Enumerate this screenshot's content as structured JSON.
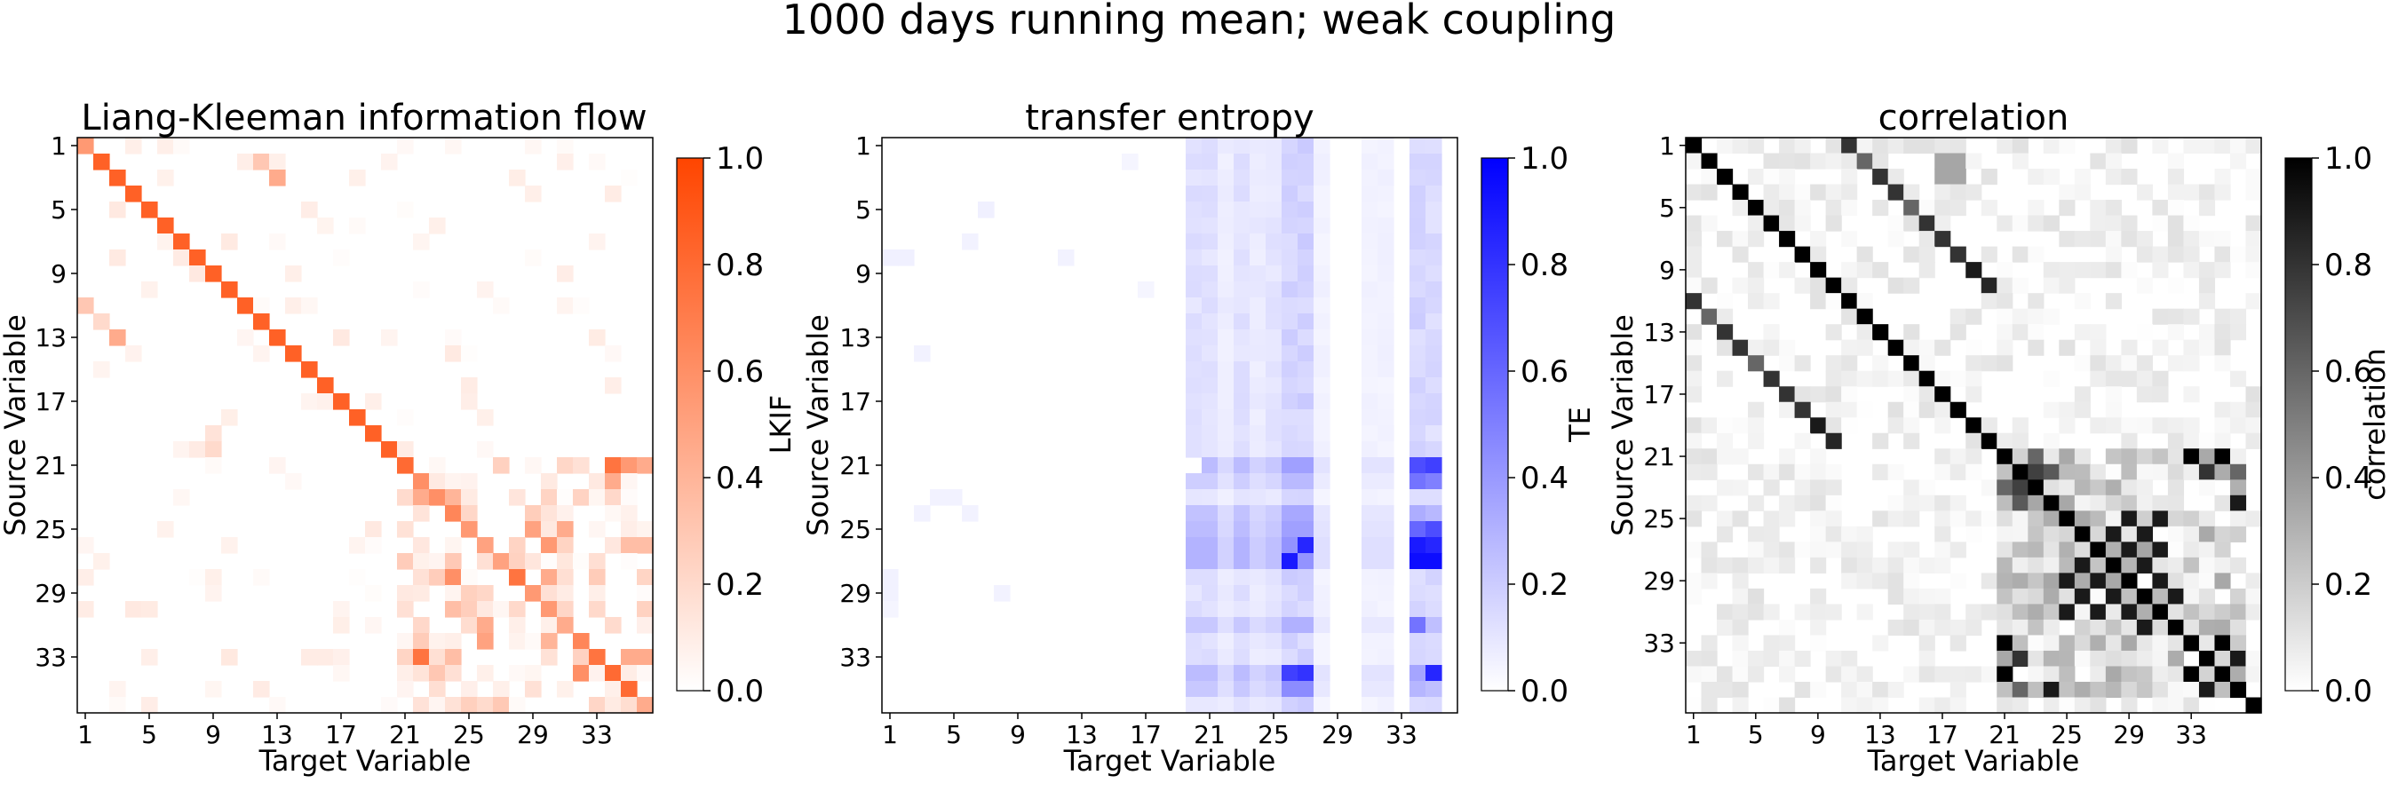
{
  "suptitle": "1000 days running mean; weak coupling",
  "panels": [
    {
      "id": "lkif",
      "title": "Liang-Kleeman information flow",
      "cbar_label": "LKIF",
      "cmap": {
        "low": "#ffffff",
        "high": "#ff4500"
      },
      "seed": 11,
      "bg_density": 0.12,
      "bg_scale": 0.12,
      "clusters": [
        {
          "rows": [
            21,
            36
          ],
          "cols": [
            21,
            36
          ],
          "density": 0.45,
          "scale": 0.3
        }
      ]
    },
    {
      "id": "te",
      "title": "transfer entropy",
      "cbar_label": "TE",
      "cmap": {
        "low": "#ffffff",
        "high": "#0000ff"
      },
      "seed": 23,
      "bg_density": 0.0,
      "bg_scale": 0.0,
      "clusters": []
    },
    {
      "id": "corr",
      "title": "correlation",
      "cbar_label": "correlation",
      "cmap": {
        "low": "#ffffff",
        "high": "#000000"
      },
      "seed": 37,
      "bg_density": 0.55,
      "bg_scale": 0.12,
      "clusters": [
        {
          "rows": [
            21,
            36
          ],
          "cols": [
            21,
            36
          ],
          "density": 0.8,
          "scale": 0.35
        }
      ]
    }
  ],
  "chart_data": [
    {
      "type": "heatmap",
      "title": "Liang-Kleeman information flow",
      "xlabel": "Target Variable",
      "ylabel": "Source Variable",
      "n": 36,
      "xticks": [
        1,
        5,
        9,
        13,
        17,
        21,
        25,
        29,
        33
      ],
      "yticks": [
        1,
        5,
        9,
        13,
        17,
        21,
        25,
        29,
        33
      ],
      "colorbar": {
        "label": "LKIF",
        "range": [
          0.0,
          1.0
        ],
        "ticks": [
          0.0,
          0.2,
          0.4,
          0.6,
          0.8,
          1.0
        ]
      },
      "strong_cells": [
        [
          1,
          1,
          0.55
        ],
        [
          2,
          2,
          0.85
        ],
        [
          3,
          3,
          0.85
        ],
        [
          4,
          4,
          0.85
        ],
        [
          5,
          5,
          0.85
        ],
        [
          6,
          6,
          0.85
        ],
        [
          7,
          7,
          0.85
        ],
        [
          8,
          8,
          0.85
        ],
        [
          9,
          9,
          0.85
        ],
        [
          10,
          10,
          0.85
        ],
        [
          11,
          11,
          0.85
        ],
        [
          12,
          12,
          0.85
        ],
        [
          13,
          13,
          0.85
        ],
        [
          14,
          14,
          0.85
        ],
        [
          15,
          15,
          0.85
        ],
        [
          16,
          16,
          0.85
        ],
        [
          17,
          17,
          0.85
        ],
        [
          18,
          18,
          0.85
        ],
        [
          19,
          19,
          0.85
        ],
        [
          20,
          20,
          0.85
        ],
        [
          21,
          21,
          0.8
        ],
        [
          22,
          22,
          0.6
        ],
        [
          23,
          23,
          0.6
        ],
        [
          24,
          24,
          0.65
        ],
        [
          25,
          25,
          0.55
        ],
        [
          26,
          26,
          0.5
        ],
        [
          27,
          27,
          0.5
        ],
        [
          28,
          28,
          0.75
        ],
        [
          29,
          29,
          0.55
        ],
        [
          30,
          30,
          0.55
        ],
        [
          31,
          31,
          0.6
        ],
        [
          32,
          32,
          0.65
        ],
        [
          33,
          33,
          0.75
        ],
        [
          34,
          34,
          0.8
        ],
        [
          35,
          35,
          0.8
        ],
        [
          36,
          36,
          0.45
        ],
        [
          2,
          12,
          0.3
        ],
        [
          3,
          13,
          0.45
        ],
        [
          13,
          3,
          0.45
        ],
        [
          12,
          2,
          0.2
        ],
        [
          11,
          1,
          0.3
        ],
        [
          20,
          9,
          0.2
        ],
        [
          19,
          9,
          0.15
        ],
        [
          21,
          34,
          0.75
        ],
        [
          21,
          35,
          0.55
        ],
        [
          21,
          36,
          0.45
        ],
        [
          22,
          34,
          0.45
        ],
        [
          23,
          22,
          0.45
        ],
        [
          23,
          24,
          0.4
        ],
        [
          25,
          29,
          0.5
        ],
        [
          25,
          31,
          0.45
        ],
        [
          26,
          30,
          0.55
        ],
        [
          28,
          24,
          0.6
        ],
        [
          28,
          30,
          0.45
        ],
        [
          30,
          24,
          0.35
        ],
        [
          31,
          26,
          0.45
        ],
        [
          31,
          31,
          0.45
        ],
        [
          32,
          26,
          0.5
        ],
        [
          32,
          30,
          0.4
        ],
        [
          33,
          22,
          0.75
        ],
        [
          33,
          24,
          0.35
        ],
        [
          33,
          35,
          0.45
        ],
        [
          33,
          36,
          0.45
        ],
        [
          34,
          32,
          0.6
        ],
        [
          34,
          23,
          0.3
        ],
        [
          26,
          35,
          0.35
        ],
        [
          26,
          36,
          0.35
        ]
      ]
    },
    {
      "type": "heatmap",
      "title": "transfer entropy",
      "xlabel": "Target Variable",
      "ylabel": "Source Variable",
      "n": 36,
      "xticks": [
        1,
        5,
        9,
        13,
        17,
        21,
        25,
        29,
        33
      ],
      "yticks": [
        1,
        5,
        9,
        13,
        17,
        21,
        25,
        29,
        33
      ],
      "colorbar": {
        "label": "TE",
        "range": [
          0.0,
          1.0
        ],
        "ticks": [
          0.0,
          0.2,
          0.4,
          0.6,
          0.8,
          1.0
        ]
      },
      "column_bands": [
        {
          "col": 20,
          "value": 0.12
        },
        {
          "col": 21,
          "value": 0.12
        },
        {
          "col": 22,
          "value": 0.07
        },
        {
          "col": 23,
          "value": 0.12
        },
        {
          "col": 24,
          "value": 0.08
        },
        {
          "col": 25,
          "value": 0.1
        },
        {
          "col": 26,
          "value": 0.17
        },
        {
          "col": 27,
          "value": 0.17
        },
        {
          "col": 28,
          "value": 0.05
        },
        {
          "col": 31,
          "value": 0.05
        },
        {
          "col": 32,
          "value": 0.05
        },
        {
          "col": 34,
          "value": 0.16
        },
        {
          "col": 35,
          "value": 0.14
        }
      ],
      "row_boost": [
        {
          "row": 21,
          "factor": 2.2
        },
        {
          "row": 22,
          "factor": 1.6
        },
        {
          "row": 24,
          "factor": 2.0
        },
        {
          "row": 25,
          "factor": 2.2
        },
        {
          "row": 26,
          "factor": 2.5
        },
        {
          "row": 27,
          "factor": 2.5
        },
        {
          "row": 31,
          "factor": 1.8
        },
        {
          "row": 34,
          "factor": 2.2
        },
        {
          "row": 35,
          "factor": 1.8
        }
      ],
      "strong_cells": [
        [
          21,
          20,
          0.0
        ],
        [
          27,
          26,
          0.9
        ],
        [
          26,
          27,
          0.85
        ],
        [
          27,
          34,
          0.95
        ],
        [
          27,
          35,
          0.95
        ],
        [
          26,
          34,
          0.9
        ],
        [
          26,
          35,
          0.85
        ],
        [
          21,
          34,
          0.7
        ],
        [
          21,
          35,
          0.75
        ],
        [
          22,
          34,
          0.55
        ],
        [
          22,
          35,
          0.5
        ],
        [
          25,
          34,
          0.6
        ],
        [
          25,
          35,
          0.7
        ],
        [
          34,
          26,
          0.75
        ],
        [
          34,
          27,
          0.8
        ],
        [
          34,
          35,
          0.85
        ],
        [
          35,
          26,
          0.45
        ],
        [
          35,
          27,
          0.45
        ],
        [
          31,
          34,
          0.55
        ],
        [
          5,
          7,
          0.06
        ],
        [
          8,
          1,
          0.06
        ],
        [
          8,
          2,
          0.06
        ],
        [
          7,
          6,
          0.05
        ],
        [
          8,
          12,
          0.05
        ],
        [
          14,
          3,
          0.05
        ],
        [
          23,
          4,
          0.05
        ],
        [
          23,
          5,
          0.05
        ],
        [
          24,
          3,
          0.05
        ],
        [
          24,
          6,
          0.05
        ],
        [
          29,
          1,
          0.05
        ],
        [
          29,
          8,
          0.05
        ],
        [
          30,
          1,
          0.04
        ],
        [
          28,
          1,
          0.05
        ],
        [
          2,
          16,
          0.04
        ],
        [
          10,
          17,
          0.04
        ]
      ]
    },
    {
      "type": "heatmap",
      "title": "correlation",
      "xlabel": "Target Variable",
      "ylabel": "Source Variable",
      "n": 37,
      "xticks": [
        1,
        5,
        9,
        13,
        17,
        21,
        25,
        29,
        33
      ],
      "yticks": [
        1,
        5,
        9,
        13,
        17,
        21,
        25,
        29,
        33
      ],
      "colorbar": {
        "label": "correlation",
        "range": [
          0.0,
          1.0
        ],
        "ticks": [
          0.0,
          0.2,
          0.4,
          0.6,
          0.8,
          1.0
        ]
      },
      "strong_cells": [
        [
          1,
          1,
          1.0
        ],
        [
          2,
          2,
          1.0
        ],
        [
          3,
          3,
          1.0
        ],
        [
          4,
          4,
          1.0
        ],
        [
          5,
          5,
          1.0
        ],
        [
          6,
          6,
          1.0
        ],
        [
          7,
          7,
          1.0
        ],
        [
          8,
          8,
          1.0
        ],
        [
          9,
          9,
          1.0
        ],
        [
          10,
          10,
          1.0
        ],
        [
          11,
          11,
          1.0
        ],
        [
          12,
          12,
          1.0
        ],
        [
          13,
          13,
          1.0
        ],
        [
          14,
          14,
          1.0
        ],
        [
          15,
          15,
          1.0
        ],
        [
          16,
          16,
          1.0
        ],
        [
          17,
          17,
          1.0
        ],
        [
          18,
          18,
          1.0
        ],
        [
          19,
          19,
          1.0
        ],
        [
          20,
          20,
          1.0
        ],
        [
          21,
          21,
          1.0
        ],
        [
          22,
          22,
          1.0
        ],
        [
          23,
          23,
          1.0
        ],
        [
          24,
          24,
          1.0
        ],
        [
          25,
          25,
          1.0
        ],
        [
          26,
          26,
          1.0
        ],
        [
          27,
          27,
          1.0
        ],
        [
          28,
          28,
          1.0
        ],
        [
          29,
          29,
          1.0
        ],
        [
          30,
          30,
          1.0
        ],
        [
          31,
          31,
          1.0
        ],
        [
          32,
          32,
          1.0
        ],
        [
          33,
          33,
          1.0
        ],
        [
          34,
          34,
          1.0
        ],
        [
          35,
          35,
          1.0
        ],
        [
          36,
          36,
          1.0
        ],
        [
          37,
          37,
          1.0
        ],
        [
          1,
          11,
          0.8
        ],
        [
          11,
          1,
          0.8
        ],
        [
          2,
          12,
          0.6
        ],
        [
          12,
          2,
          0.6
        ],
        [
          3,
          13,
          0.8
        ],
        [
          13,
          3,
          0.8
        ],
        [
          4,
          14,
          0.8
        ],
        [
          14,
          4,
          0.8
        ],
        [
          5,
          15,
          0.6
        ],
        [
          15,
          5,
          0.6
        ],
        [
          6,
          16,
          0.8
        ],
        [
          16,
          6,
          0.8
        ],
        [
          7,
          17,
          0.8
        ],
        [
          17,
          7,
          0.8
        ],
        [
          8,
          18,
          0.8
        ],
        [
          18,
          8,
          0.8
        ],
        [
          9,
          19,
          0.9
        ],
        [
          19,
          9,
          0.9
        ],
        [
          10,
          20,
          0.85
        ],
        [
          20,
          10,
          0.85
        ],
        [
          2,
          17,
          0.35
        ],
        [
          2,
          18,
          0.35
        ],
        [
          3,
          17,
          0.35
        ],
        [
          3,
          18,
          0.35
        ],
        [
          21,
          33,
          1.0
        ],
        [
          33,
          21,
          1.0
        ],
        [
          21,
          35,
          1.0
        ],
        [
          35,
          21,
          1.0
        ],
        [
          22,
          34,
          0.8
        ],
        [
          34,
          22,
          0.8
        ],
        [
          22,
          23,
          0.75
        ],
        [
          23,
          22,
          0.75
        ],
        [
          22,
          24,
          0.65
        ],
        [
          24,
          22,
          0.65
        ],
        [
          23,
          21,
          0.6
        ],
        [
          21,
          23,
          0.6
        ],
        [
          24,
          36,
          0.9
        ],
        [
          36,
          24,
          0.9
        ],
        [
          25,
          29,
          0.9
        ],
        [
          29,
          25,
          0.9
        ],
        [
          25,
          31,
          0.9
        ],
        [
          31,
          25,
          0.9
        ],
        [
          26,
          28,
          0.9
        ],
        [
          28,
          26,
          0.9
        ],
        [
          26,
          30,
          0.9
        ],
        [
          30,
          26,
          0.9
        ],
        [
          27,
          29,
          0.9
        ],
        [
          29,
          27,
          0.9
        ],
        [
          27,
          31,
          0.9
        ],
        [
          31,
          27,
          0.9
        ],
        [
          28,
          30,
          0.9
        ],
        [
          30,
          28,
          0.9
        ],
        [
          29,
          31,
          0.9
        ],
        [
          31,
          29,
          0.9
        ],
        [
          30,
          32,
          0.9
        ],
        [
          32,
          30,
          0.9
        ],
        [
          33,
          35,
          1.0
        ],
        [
          35,
          33,
          1.0
        ],
        [
          34,
          36,
          0.9
        ],
        [
          36,
          34,
          0.9
        ],
        [
          22,
          36,
          0.6
        ],
        [
          36,
          22,
          0.6
        ]
      ]
    }
  ]
}
